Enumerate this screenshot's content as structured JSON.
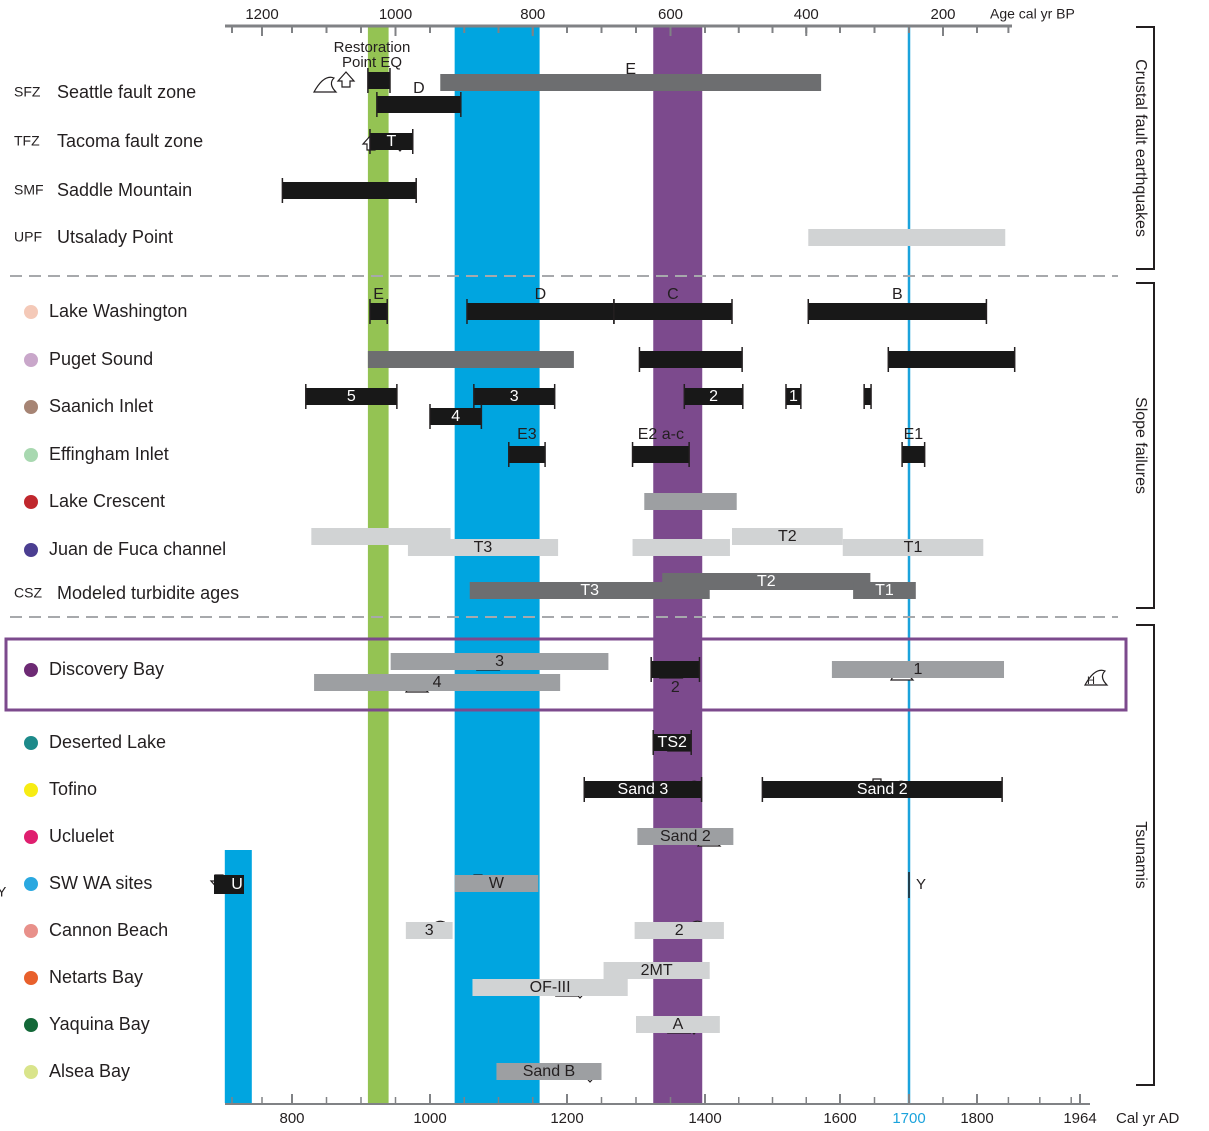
{
  "chart_data": {
    "type": "timeline",
    "top_axis": {
      "label": "Age cal yr BP",
      "ticks": [
        1200,
        1000,
        800,
        600,
        400,
        200
      ]
    },
    "bottom_axis": {
      "label": "Cal yr AD",
      "ticks": [
        800,
        1000,
        1200,
        1400,
        1600,
        1700,
        1800,
        1964
      ],
      "highlight_tick": 1700,
      "highlight_color": "#1ba3dc"
    },
    "colors": {
      "green_band": "#94c353",
      "blue_band": "#00a5e0",
      "purple_band": "#7c4a8d",
      "line_1700": "#1ba3dc",
      "bar_black": "#181818",
      "bar_dark_gray": "#6d6e70",
      "bar_mid_gray": "#9d9fa2",
      "bar_light_gray": "#d1d3d4",
      "highlight_box": "#7c4a8d"
    },
    "bands": [
      {
        "name": "green",
        "from": 910,
        "to": 940
      },
      {
        "name": "blue",
        "from": 1036,
        "to": 1160
      },
      {
        "name": "purple",
        "from": 1325,
        "to": 1396
      },
      {
        "name": "blue-left",
        "from": 688,
        "to": 733
      }
    ],
    "reference_line": {
      "year": 1700
    },
    "sections": [
      {
        "label": "Crustal fault earthquakes"
      },
      {
        "label": "Slope failures"
      },
      {
        "label": "Tsunamis"
      }
    ],
    "rows": [
      {
        "key": "sfz",
        "code": "SFZ",
        "name": "Seattle fault zone",
        "dot": "",
        "bars": [
          {
            "from": 910,
            "to": 942,
            "shade": "black"
          },
          {
            "from": 1015,
            "to": 1572,
            "shade": "dark",
            "label": "E"
          },
          {
            "from": 923,
            "to": 1045,
            "shade": "black",
            "label": "D"
          }
        ]
      },
      {
        "key": "tfz",
        "code": "TFZ",
        "name": "Tacoma fault zone",
        "dot": "",
        "bars": [
          {
            "from": 913,
            "to": 975,
            "shade": "black",
            "label": "T"
          }
        ]
      },
      {
        "key": "smf",
        "code": "SMF",
        "name": "Saddle Mountain",
        "dot": "",
        "bars": [
          {
            "from": 784,
            "to": 980,
            "shade": "black"
          }
        ]
      },
      {
        "key": "upf",
        "code": "UPF",
        "name": "Utsalady Point",
        "dot": "",
        "bars": [
          {
            "from": 1553,
            "to": 1845,
            "shade": "light"
          }
        ]
      },
      {
        "key": "lw",
        "code": "",
        "name": "Lake Washington",
        "dot": "#f4c9b8",
        "bars": [
          {
            "from": 913,
            "to": 938,
            "shade": "black",
            "label": "E"
          },
          {
            "from": 1054,
            "to": 1268,
            "shade": "black",
            "label": "D"
          },
          {
            "from": 1268,
            "to": 1440,
            "shade": "black",
            "label": "C"
          },
          {
            "from": 1553,
            "to": 1815,
            "shade": "black",
            "label": "B"
          }
        ]
      },
      {
        "key": "ps",
        "code": "",
        "name": "Puget Sound",
        "dot": "#c9a7ca",
        "bars": [
          {
            "from": 910,
            "to": 1210,
            "shade": "dark"
          },
          {
            "from": 1305,
            "to": 1455,
            "shade": "black"
          },
          {
            "from": 1670,
            "to": 1860,
            "shade": "black"
          }
        ]
      },
      {
        "key": "si",
        "code": "",
        "name": "Saanich Inlet",
        "dot": "#a68474",
        "bars": [
          {
            "from": 820,
            "to": 952,
            "shade": "black",
            "label": "5"
          },
          {
            "from": 1064,
            "to": 1182,
            "shade": "black",
            "label": "3"
          },
          {
            "from": 1370,
            "to": 1456,
            "shade": "black",
            "label": "2"
          },
          {
            "from": 1520,
            "to": 1542,
            "shade": "black",
            "label": "1"
          },
          {
            "from": 1635,
            "to": 1645,
            "shade": "black"
          },
          {
            "from": 1000,
            "to": 1075,
            "shade": "black",
            "label": "4"
          }
        ]
      },
      {
        "key": "ei",
        "code": "",
        "name": "Effingham Inlet",
        "dot": "#a8d8b0",
        "bars": [
          {
            "from": 1115,
            "to": 1168,
            "shade": "black",
            "label": "E3"
          },
          {
            "from": 1295,
            "to": 1377,
            "shade": "black",
            "label": "E2 a-c"
          },
          {
            "from": 1690,
            "to": 1723,
            "shade": "black",
            "label": "E1"
          }
        ]
      },
      {
        "key": "lc",
        "code": "",
        "name": "Lake Crescent",
        "dot": "#c0272d",
        "bars": [
          {
            "from": 1312,
            "to": 1447,
            "shade": "mid"
          }
        ]
      },
      {
        "key": "jdf",
        "code": "",
        "name": "Juan de Fuca channel",
        "dot": "#4b3e91",
        "bars": [
          {
            "from": 828,
            "to": 1030,
            "shade": "light"
          },
          {
            "from": 968,
            "to": 1187,
            "shade": "light",
            "label": "T3"
          },
          {
            "from": 1295,
            "to": 1437,
            "shade": "light"
          },
          {
            "from": 1440,
            "to": 1604,
            "shade": "light",
            "label": "T2"
          },
          {
            "from": 1604,
            "to": 1810,
            "shade": "light",
            "label": "T1"
          }
        ]
      },
      {
        "key": "csz",
        "code": "CSZ",
        "name": "Modeled turbidite ages",
        "dot": "",
        "bars": [
          {
            "from": 1058,
            "to": 1407,
            "shade": "dark",
            "label": "T3"
          },
          {
            "from": 1338,
            "to": 1644,
            "shade": "dark",
            "label": "T2"
          },
          {
            "from": 1619,
            "to": 1710,
            "shade": "dark",
            "label": "T1"
          }
        ]
      },
      {
        "key": "db",
        "code": "",
        "name": "Discovery Bay",
        "dot": "#6d2a74",
        "bars": [
          {
            "from": 943,
            "to": 1260,
            "shade": "mid",
            "label": "3"
          },
          {
            "from": 832,
            "to": 1190,
            "shade": "mid",
            "label": "4"
          },
          {
            "from": 1322,
            "to": 1392,
            "shade": "black",
            "label": "2"
          },
          {
            "from": 1588,
            "to": 1843,
            "shade": "mid",
            "label": "1"
          }
        ]
      },
      {
        "key": "dl",
        "code": "",
        "name": "Deserted Lake",
        "dot": "#1d8a8a",
        "bars": [
          {
            "from": 1325,
            "to": 1380,
            "shade": "black",
            "label": "TS2"
          }
        ]
      },
      {
        "key": "tof",
        "code": "",
        "name": "Tofino",
        "dot": "#f7ec13",
        "bars": [
          {
            "from": 1225,
            "to": 1395,
            "shade": "black",
            "label": "Sand 3"
          },
          {
            "from": 1485,
            "to": 1840,
            "shade": "black",
            "label": "Sand 2"
          }
        ]
      },
      {
        "key": "ucl",
        "code": "",
        "name": "Ucluelet",
        "dot": "#df1f6f",
        "bars": [
          {
            "from": 1302,
            "to": 1442,
            "shade": "mid",
            "label": "Sand 2"
          }
        ]
      },
      {
        "key": "sw",
        "code": "",
        "name": "SW WA sites",
        "dot": "#2aa8e0",
        "bars": [
          {
            "from": 1036,
            "to": 1158,
            "shade": "mid",
            "label": "W"
          }
        ]
      },
      {
        "key": "cb",
        "code": "",
        "name": "Cannon Beach",
        "dot": "#e8908a",
        "bars": [
          {
            "from": 965,
            "to": 1033,
            "shade": "light",
            "label": "3"
          },
          {
            "from": 1298,
            "to": 1428,
            "shade": "light",
            "label": "2"
          }
        ]
      },
      {
        "key": "nb",
        "code": "",
        "name": "Netarts Bay",
        "dot": "#e8602c",
        "bars": [
          {
            "from": 1253,
            "to": 1407,
            "shade": "light",
            "label": "2MT"
          },
          {
            "from": 1062,
            "to": 1288,
            "shade": "light",
            "label": "OF-III"
          }
        ]
      },
      {
        "key": "yb",
        "code": "",
        "name": "Yaquina Bay",
        "dot": "#136838",
        "bars": [
          {
            "from": 1300,
            "to": 1422,
            "shade": "light",
            "label": "A"
          }
        ]
      },
      {
        "key": "ab",
        "code": "",
        "name": "Alsea Bay",
        "dot": "#d9e48b",
        "bars": [
          {
            "from": 1097,
            "to": 1250,
            "shade": "mid",
            "label": "Sand B"
          }
        ]
      }
    ],
    "annotations": {
      "restoration_point": "Restoration\nPoint EQ",
      "u_label": "U",
      "y_label": "Y",
      "h_label": "H",
      "left_edge_y": "Y"
    }
  }
}
